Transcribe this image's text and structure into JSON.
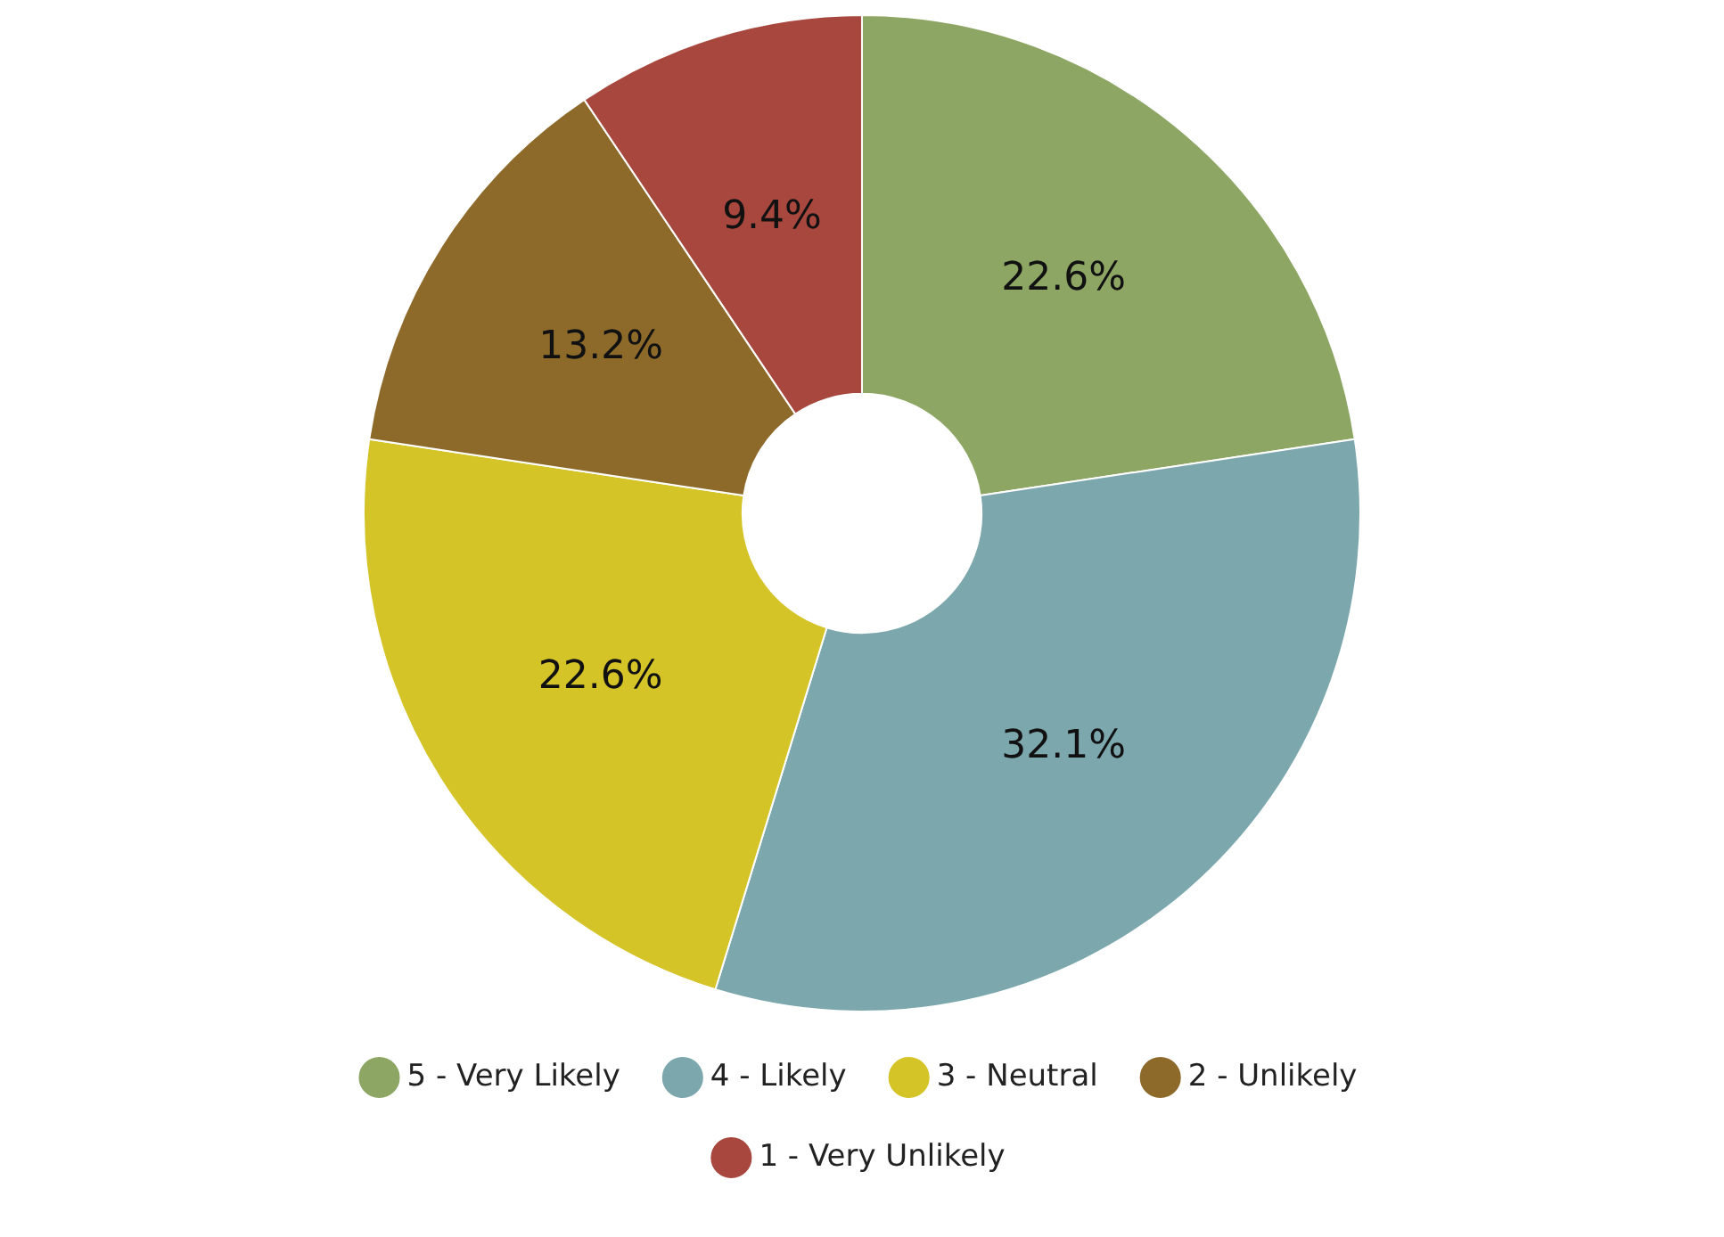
{
  "chart_data": {
    "type": "donut",
    "categories": [
      "5 - Very Likely",
      "4 - Likely",
      "3 - Neutral",
      "2 - Unlikely",
      "1 - Very Unlikely"
    ],
    "values": [
      22.6,
      32.1,
      22.6,
      13.2,
      9.4
    ],
    "colors": [
      "#8ea664",
      "#7ba7ad",
      "#d5c428",
      "#8e6a2a",
      "#a8473e"
    ],
    "value_labels": [
      "22.6%",
      "32.1%",
      "22.6%",
      "13.2%",
      "9.4%"
    ],
    "legend": "bottom"
  }
}
